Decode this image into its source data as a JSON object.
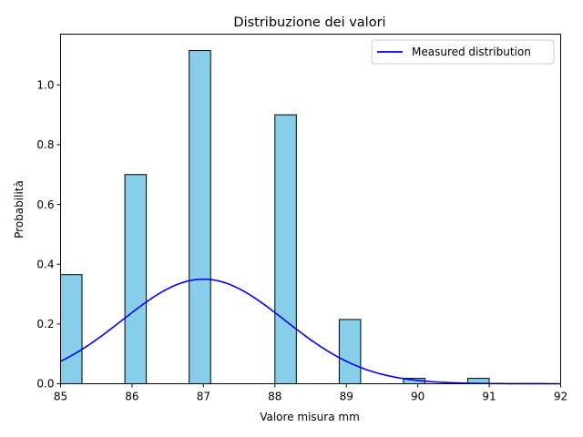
{
  "chart_data": {
    "type": "bar",
    "title": "Distribuzione dei valori",
    "xlabel": "Valore misura mm",
    "ylabel": "Probabilità",
    "xlim": [
      85,
      92
    ],
    "ylim": [
      0,
      1.17
    ],
    "grid": false,
    "legend_placement": "top-right",
    "xticks": [
      85,
      86,
      87,
      88,
      89,
      90,
      91,
      92
    ],
    "xtick_labels": [
      "85",
      "86",
      "87",
      "88",
      "89",
      "90",
      "91",
      "92"
    ],
    "yticks": [
      0,
      0.2,
      0.4,
      0.6,
      0.8,
      1.0
    ],
    "ytick_labels": [
      "0.0",
      "0.2",
      "0.4",
      "0.6",
      "0.8",
      "1.0"
    ],
    "histogram": {
      "name": "Histogram",
      "color": "#87ceeb",
      "edge_color": "#000000",
      "bins": [
        {
          "x0": 85.0,
          "x1": 85.3,
          "value": 0.365
        },
        {
          "x0": 85.9,
          "x1": 86.2,
          "value": 0.7
        },
        {
          "x0": 86.8,
          "x1": 87.1,
          "value": 1.115
        },
        {
          "x0": 88.0,
          "x1": 88.3,
          "value": 0.9
        },
        {
          "x0": 88.9,
          "x1": 89.2,
          "value": 0.215
        },
        {
          "x0": 89.8,
          "x1": 90.1,
          "value": 0.018
        },
        {
          "x0": 90.7,
          "x1": 91.0,
          "value": 0.018
        }
      ]
    },
    "series": [
      {
        "name": "Measured distribution",
        "type": "line",
        "color": "#0000ff",
        "mean": 87.0,
        "std": 1.14
      }
    ],
    "legend": [
      "Measured distribution"
    ]
  }
}
